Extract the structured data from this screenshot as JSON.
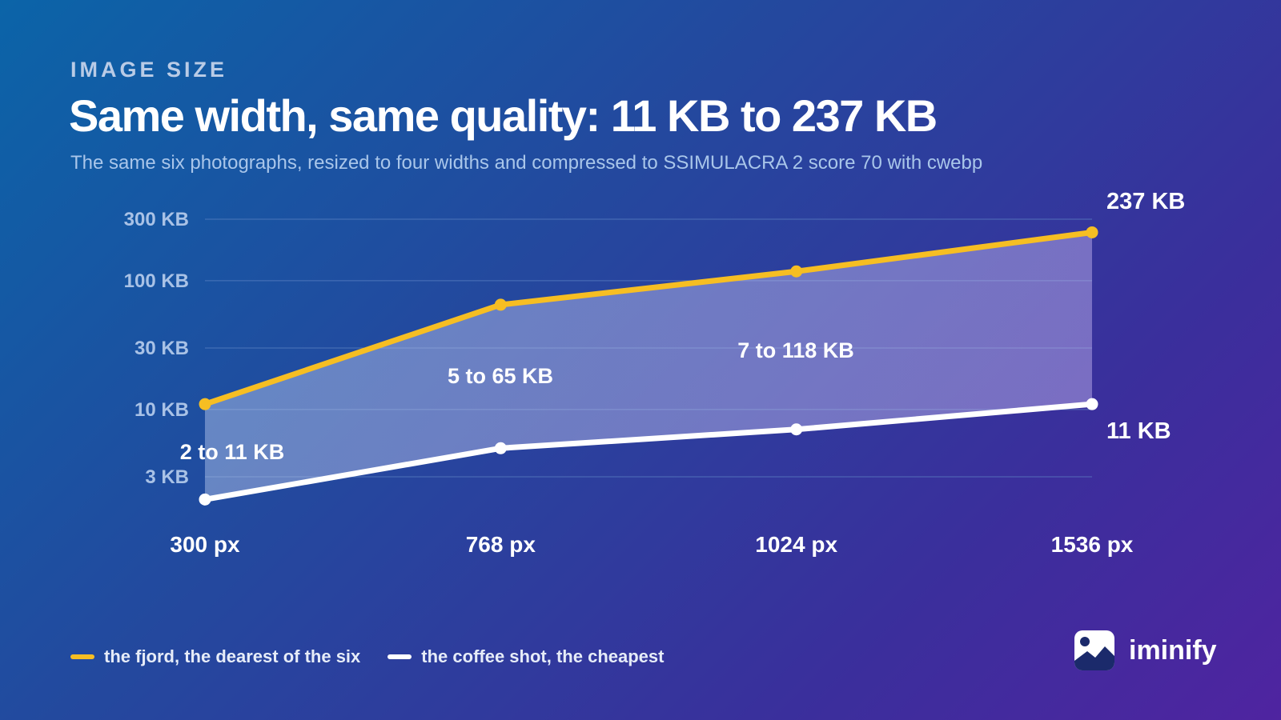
{
  "eyebrow": "IMAGE SIZE",
  "title": "Same width, same quality: 11 KB to 237 KB",
  "subtitle": "The same six photographs, resized to four widths and compressed to SSIMULACRA 2 score 70 with cwebp",
  "brand": {
    "name": "iminify",
    "icon": "image-icon"
  },
  "colors": {
    "fjord": "#f6be23",
    "coffee": "#ffffff",
    "band": "#b1b0e3",
    "grid": "#5f86c4"
  },
  "chart_data": {
    "type": "line",
    "y_scale": "log",
    "ylim": [
      2,
      300
    ],
    "grid": true,
    "legend_position": "bottom-left",
    "categories": [
      "300 px",
      "768 px",
      "1024 px",
      "1536 px"
    ],
    "y_ticks": [
      {
        "value": 300,
        "label": "300 KB"
      },
      {
        "value": 100,
        "label": "100 KB"
      },
      {
        "value": 30,
        "label": "30 KB"
      },
      {
        "value": 10,
        "label": "10 KB"
      },
      {
        "value": 3,
        "label": "3 KB"
      }
    ],
    "series": [
      {
        "name": "the fjord, the dearest of the six",
        "values": [
          11,
          65,
          118,
          237
        ]
      },
      {
        "name": "the coffee shot, the cheapest",
        "values": [
          2,
          5,
          7,
          11
        ]
      }
    ],
    "range_labels": [
      "2 to 11 KB",
      "5 to 65 KB",
      "7 to 118 KB"
    ],
    "end_labels": [
      "237 KB",
      "11 KB"
    ]
  }
}
